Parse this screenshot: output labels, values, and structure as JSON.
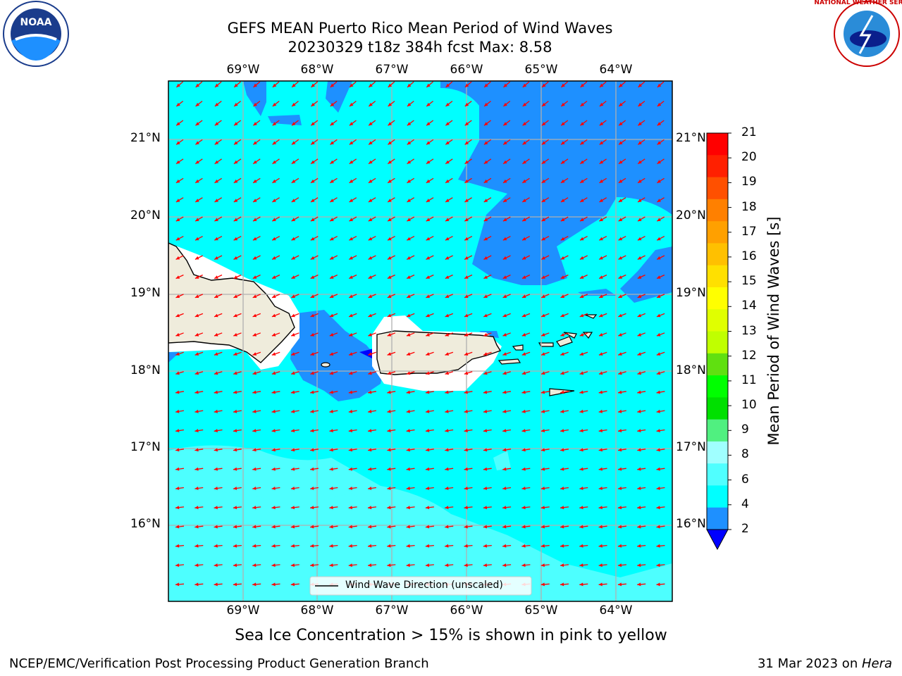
{
  "title": {
    "line1": "GEFS MEAN Puerto Rico Mean Period of Wind Waves",
    "line2": "20230329 t18z 384h fcst   Max: 8.58"
  },
  "map": {
    "lon_labels": [
      "69°W",
      "68°W",
      "67°W",
      "66°W",
      "65°W",
      "64°W"
    ],
    "lat_labels": [
      "21°N",
      "20°N",
      "19°N",
      "18°N",
      "17°N",
      "16°N"
    ],
    "legend": "Wind Wave Direction (unscaled)",
    "colors": {
      "land": "#efecdc",
      "ocean_6_8": "#00ffff",
      "ocean_4_6": "#1e90ff",
      "ocean_8_9": "#4dffff",
      "arrows": "#ff0000",
      "grid": "#b0b0b0"
    }
  },
  "colorbar": {
    "label": "Mean Period of Wind Waves [s]",
    "ticks": [
      "21",
      "20",
      "19",
      "18",
      "17",
      "16",
      "15",
      "14",
      "13",
      "12",
      "11",
      "10",
      "9",
      "8",
      "6",
      "4",
      "2"
    ],
    "colors": [
      "#ff0000",
      "#ff2000",
      "#ff5000",
      "#ff8000",
      "#ffa000",
      "#ffc000",
      "#ffe000",
      "#ffff00",
      "#e0ff00",
      "#c0ff00",
      "#60e010",
      "#00ff00",
      "#00e000",
      "#50f080",
      "#a0ffff",
      "#50ffff",
      "#00ffff",
      "#1e90ff",
      "#0000ff"
    ]
  },
  "caption": "Sea Ice Concentration > 15% is shown in pink to yellow",
  "footer": {
    "left": "NCEP/EMC/Verification Post Processing Product Generation Branch",
    "right_prefix": "31 Mar 2023 on ",
    "right_host": "Hera"
  },
  "logos": {
    "noaa": "NOAA",
    "nws": "NATIONAL WEATHER SERVICE"
  }
}
